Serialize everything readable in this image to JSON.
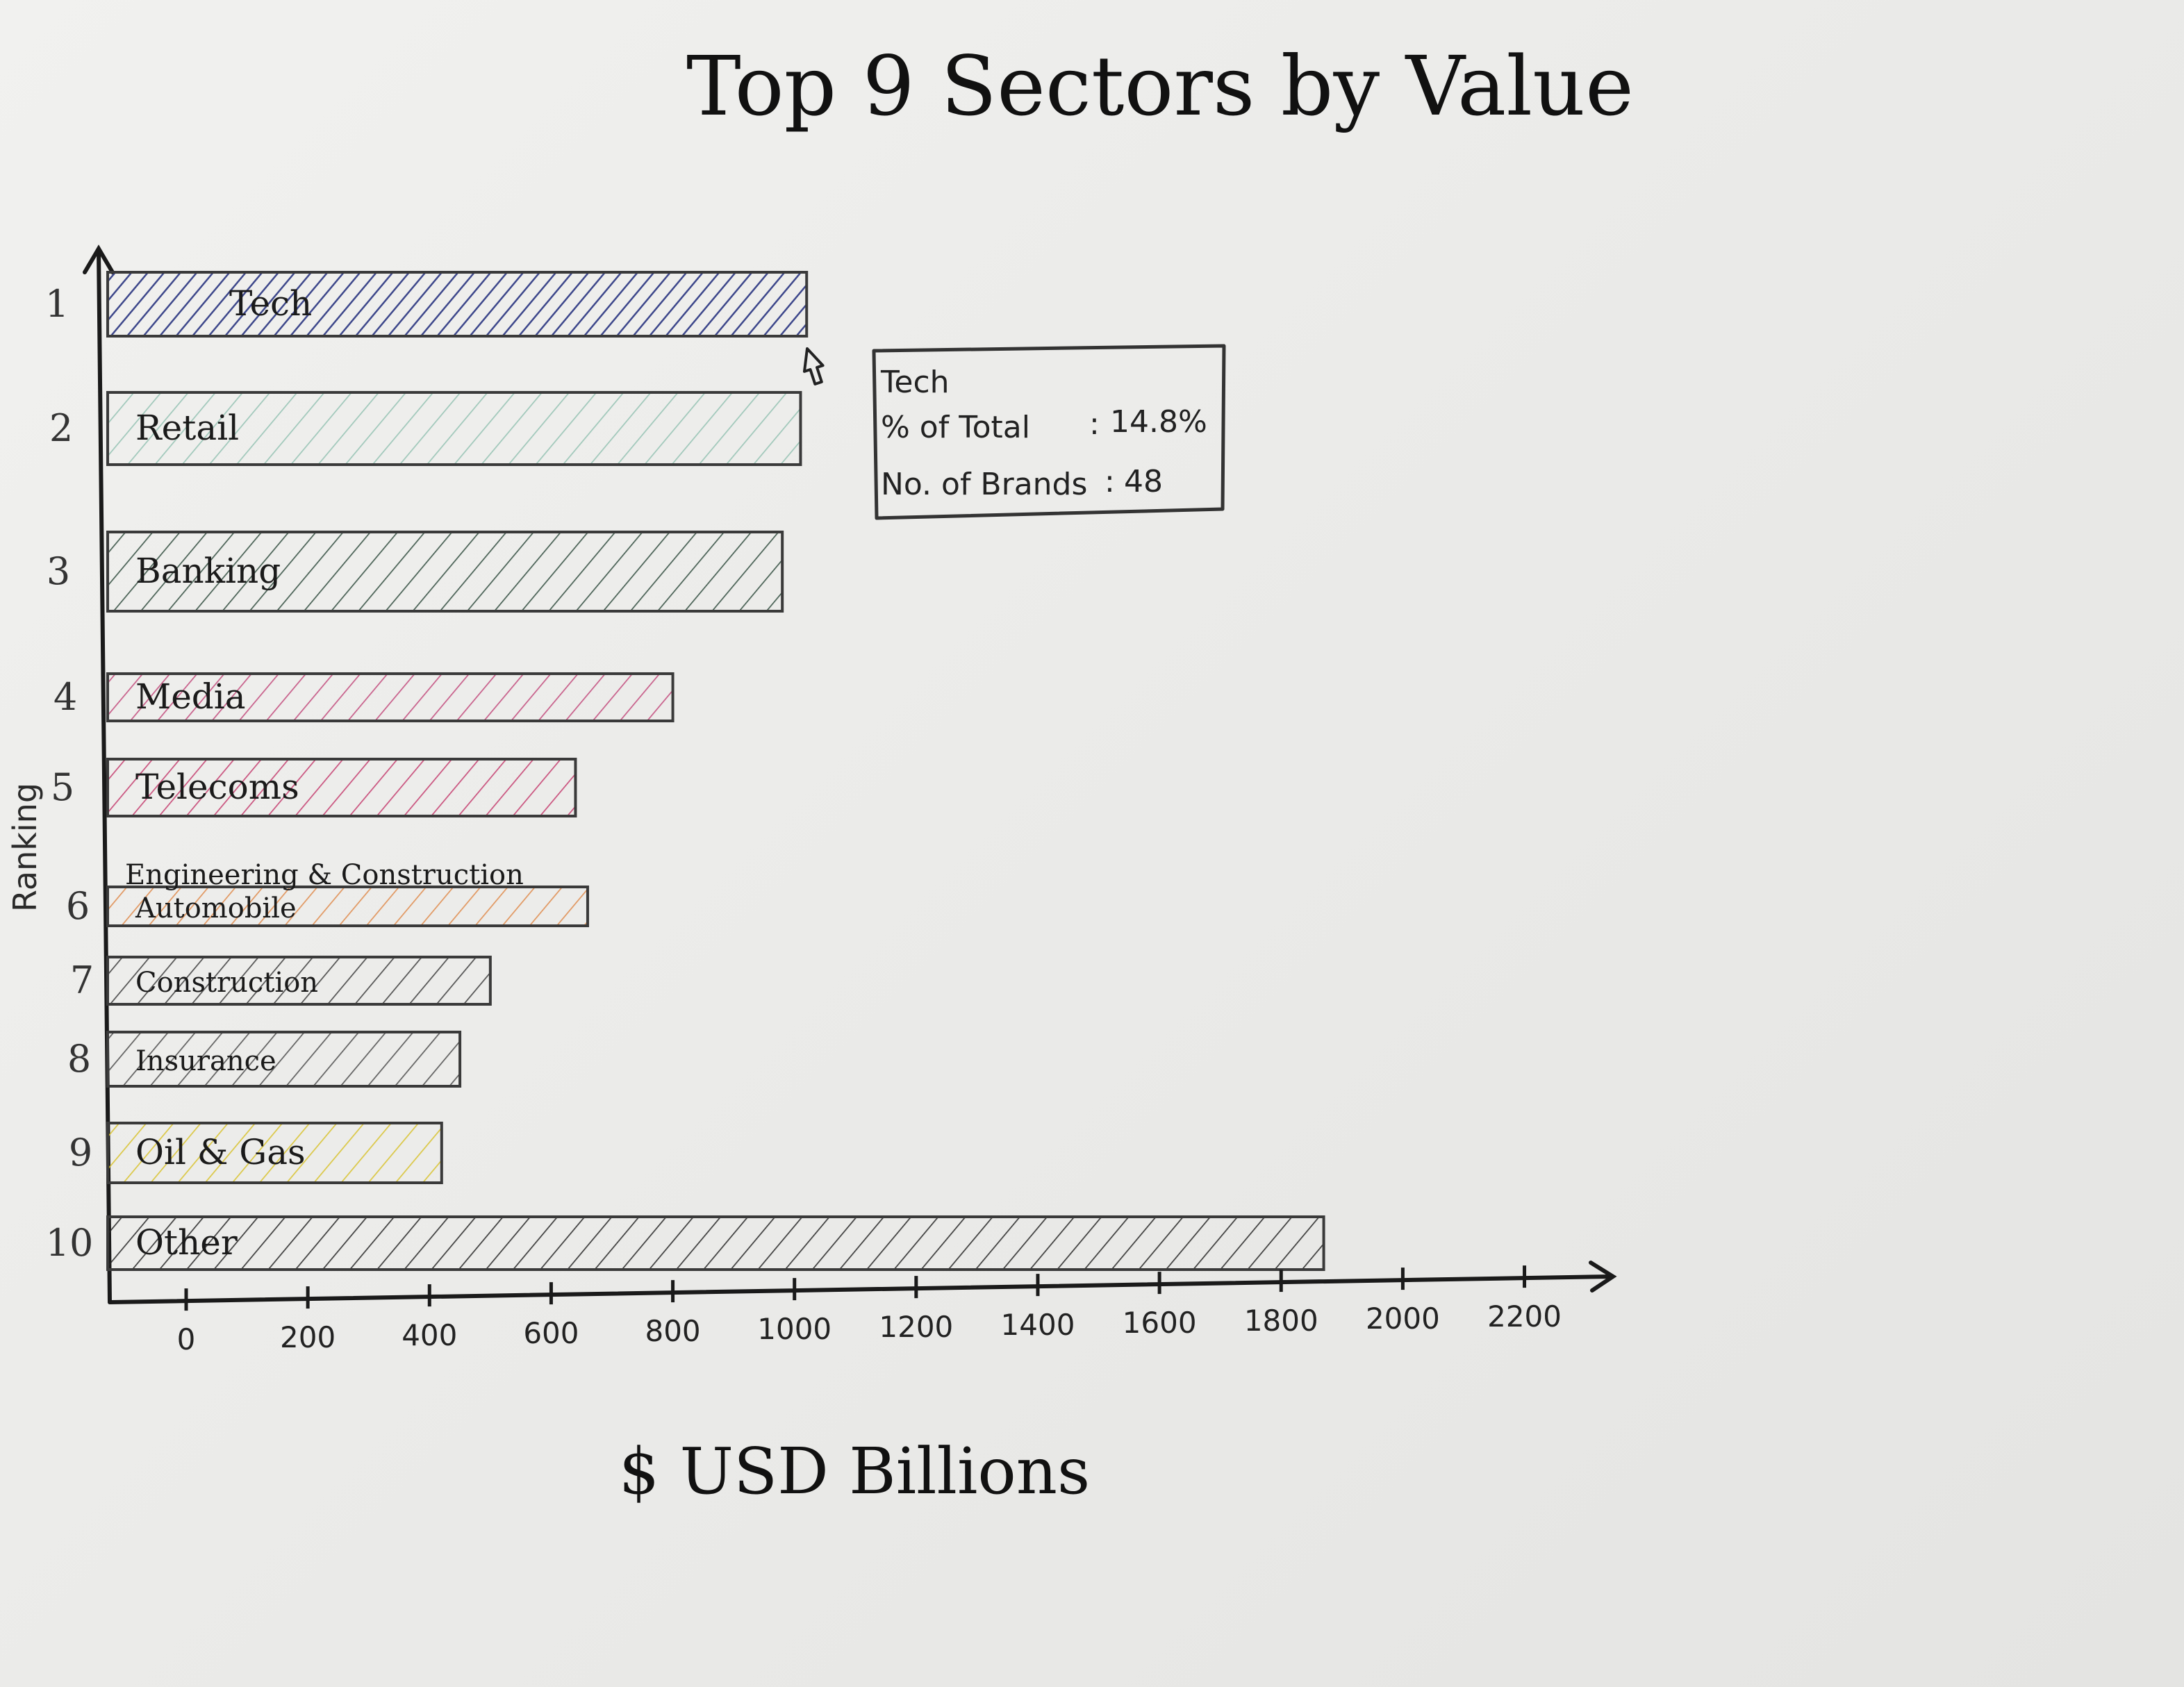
{
  "chart_data": {
    "type": "bar",
    "orientation": "horizontal",
    "title": "Top 9 Sectors by Value",
    "xlabel": "$ USD Billions",
    "ylabel": "Ranking",
    "xlim": [
      0,
      2500
    ],
    "x_ticks": [
      0,
      200,
      400,
      600,
      800,
      1000,
      1200,
      1400,
      1600,
      1800,
      2000,
      2200
    ],
    "grid": false,
    "bars": [
      {
        "rank": "1",
        "category": "Tech",
        "value": 1020,
        "color": "#1f2a7a"
      },
      {
        "rank": "2",
        "category": "Retail",
        "value": 1010,
        "color": "#7fb8a6"
      },
      {
        "rank": "3",
        "category": "Banking",
        "value": 980,
        "color": "#2e4a3c"
      },
      {
        "rank": "4",
        "category": "Media",
        "value": 800,
        "color": "#c2487a"
      },
      {
        "rank": "5",
        "category": "Telecoms",
        "value": 640,
        "color": "#c43a6c"
      },
      {
        "rank": "6",
        "category": "Automobile",
        "value": 660,
        "color": "#e08a4a",
        "note": "Engineering & Construction"
      },
      {
        "rank": "7",
        "category": "Construction",
        "value": 500,
        "color": "#3a3a3a"
      },
      {
        "rank": "8",
        "category": "Insurance",
        "value": 450,
        "color": "#4a4a4a"
      },
      {
        "rank": "9",
        "category": "Oil & Gas",
        "value": 420,
        "color": "#d8c22a"
      },
      {
        "rank": "10",
        "category": "Other",
        "value": 1870,
        "color": "#222222"
      }
    ],
    "tooltip": {
      "title": "Tech",
      "rows": [
        {
          "label": "% of Total",
          "value": "14.8%"
        },
        {
          "label": "No. of Brands",
          "value": "48"
        }
      ]
    }
  }
}
